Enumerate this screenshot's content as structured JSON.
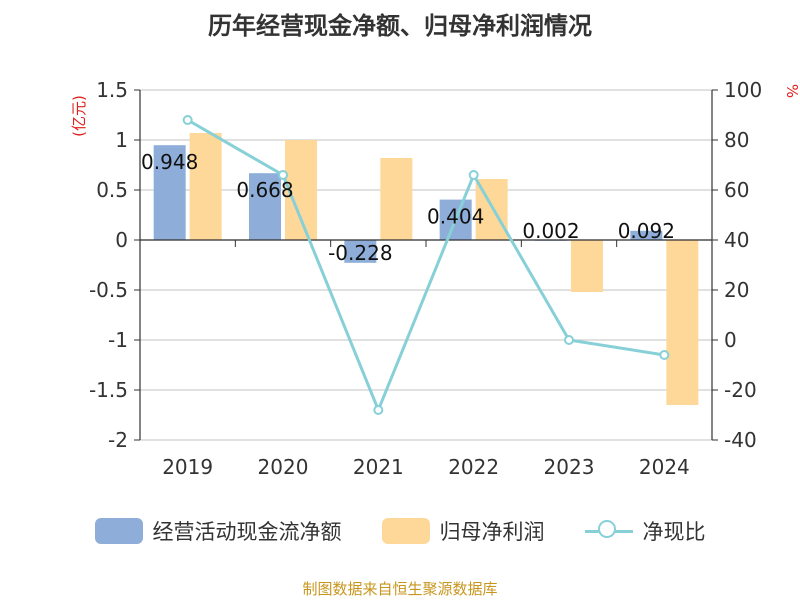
{
  "title": "历年经营现金净额、归母净利润情况",
  "source": "制图数据来自恒生聚源数据库",
  "chart_data": {
    "type": "bar",
    "categories": [
      "2019",
      "2020",
      "2021",
      "2022",
      "2023",
      "2024"
    ],
    "series": [
      {
        "name": "经营活动现金流净额",
        "kind": "bar",
        "axis": "left",
        "color": "#8eaed9",
        "values": [
          0.948,
          0.668,
          -0.228,
          0.404,
          0.002,
          0.092
        ],
        "labels": [
          "0.948",
          "0.668",
          "-0.228",
          "0.404",
          "0.002",
          "0.092"
        ]
      },
      {
        "name": "归母净利润",
        "kind": "bar",
        "axis": "left",
        "color": "#fdd898",
        "values": [
          1.07,
          1.0,
          0.82,
          0.61,
          -0.52,
          -1.65
        ]
      },
      {
        "name": "净现比",
        "kind": "line",
        "axis": "right",
        "color": "#88d0d8",
        "values": [
          88,
          66,
          -28,
          66,
          0,
          -6
        ]
      }
    ],
    "left_axis": {
      "unit": "(亿元)",
      "ylim": [
        -2,
        1.5
      ],
      "ticks": [
        1.5,
        1,
        0.5,
        0,
        -0.5,
        -1,
        -1.5,
        -2
      ],
      "tick_labels": [
        "1.5",
        "1",
        "0.5",
        "0",
        "-0.5",
        "-1",
        "-1.5",
        "-2"
      ]
    },
    "right_axis": {
      "unit": "%",
      "ylim": [
        -40,
        100
      ],
      "ticks": [
        100,
        80,
        60,
        40,
        20,
        0,
        -20,
        -40
      ],
      "tick_labels": [
        "100",
        "80",
        "60",
        "40",
        "20",
        "0",
        "-20",
        "-40"
      ]
    },
    "grid": true,
    "legend_position": "bottom"
  }
}
